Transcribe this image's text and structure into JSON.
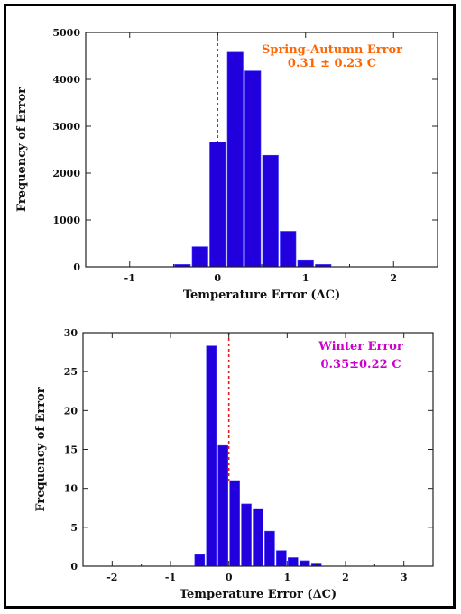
{
  "colors": {
    "bar": "#2200dd",
    "bar_edge": "#3a3aff",
    "zero_line": "#e02020",
    "annotation_top": "#ff6600",
    "annotation_bottom": "#cc00cc"
  },
  "chart_data": [
    {
      "type": "bar",
      "title": "",
      "xlabel": "Temperature Error (ΔC)",
      "ylabel": "Frequency of Error",
      "xlim": [
        -1.5,
        2.5
      ],
      "ylim": [
        0,
        5000
      ],
      "xticks": [
        -1,
        0,
        1,
        2
      ],
      "xtick_labels": [
        "-1",
        "0",
        "1",
        "2"
      ],
      "yticks": [
        0,
        1000,
        2000,
        3000,
        4000,
        5000
      ],
      "ytick_labels": [
        "0",
        "1000",
        "2000",
        "3000",
        "4000",
        "5000"
      ],
      "bin_width": 0.2,
      "x": [
        -0.4,
        -0.2,
        0.0,
        0.2,
        0.4,
        0.6,
        0.8,
        1.0,
        1.2
      ],
      "values": [
        50,
        430,
        2660,
        4580,
        4180,
        2380,
        760,
        150,
        50
      ],
      "zero_line_x": 0,
      "annotation": [
        "Spring-Autumn Error",
        "0.31 ± 0.23 C"
      ],
      "grid": false,
      "legend": "none"
    },
    {
      "type": "bar",
      "title": "",
      "xlabel": "Temperature Error (ΔC)",
      "ylabel": "Frequency of Error",
      "xlim": [
        -2.5,
        3.5
      ],
      "ylim": [
        0,
        30
      ],
      "xticks": [
        -2,
        -1,
        0,
        1,
        2,
        3
      ],
      "xtick_labels": [
        "-2",
        "-1",
        "0",
        "1",
        "2",
        "3"
      ],
      "yticks": [
        0,
        5,
        10,
        15,
        20,
        25,
        30
      ],
      "ytick_labels": [
        "0",
        "5",
        "10",
        "15",
        "20",
        "25",
        "30"
      ],
      "bin_width": 0.2,
      "x": [
        -0.5,
        -0.3,
        -0.1,
        0.1,
        0.3,
        0.5,
        0.7,
        0.9,
        1.1,
        1.3,
        1.5,
        1.7,
        1.9
      ],
      "values": [
        1.5,
        28.3,
        15.5,
        11.0,
        8.0,
        7.4,
        4.5,
        2.0,
        1.1,
        0.7,
        0.4,
        0,
        0
      ],
      "zero_line_x": 0,
      "annotation": [
        "Winter Error",
        "0.35±0.22 C"
      ],
      "grid": false,
      "legend": "none"
    }
  ]
}
